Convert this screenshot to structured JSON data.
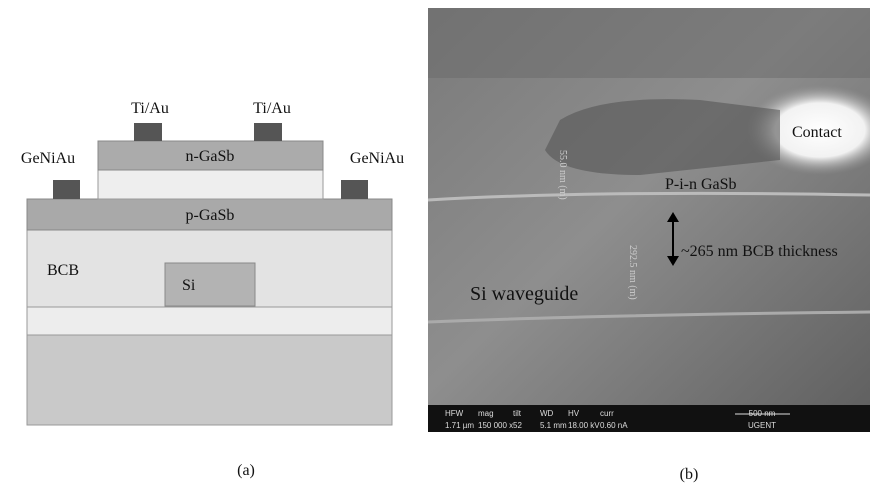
{
  "panel_a": {
    "labels": {
      "ti_au_left": "Ti/Au",
      "ti_au_right": "Ti/Au",
      "geniau_left": "GeNiAu",
      "geniau_right": "GeNiAu",
      "n_gasb": "n-GaSb",
      "p_gasb": "p-GaSb",
      "bcb": "BCB",
      "si": "Si"
    },
    "caption": "(a)"
  },
  "panel_b": {
    "labels": {
      "contact": "Contact",
      "pin": "P-i-n GaSb",
      "bcb_thickness": "~265 nm BCB thickness",
      "waveguide": "Si waveguide"
    },
    "measurements": [
      "55.0 nm (m)",
      "292.5 nm (m)"
    ],
    "databar": {
      "headers": [
        "HFW",
        "mag",
        "tilt",
        "WD",
        "HV",
        "curr"
      ],
      "values": [
        "1.71 µm",
        "150 000 x",
        "52",
        "5.1 mm",
        "18.00 kV",
        "0.60 nA"
      ],
      "scale": "500 nm",
      "institution": "UGENT"
    },
    "caption": "(b)"
  }
}
